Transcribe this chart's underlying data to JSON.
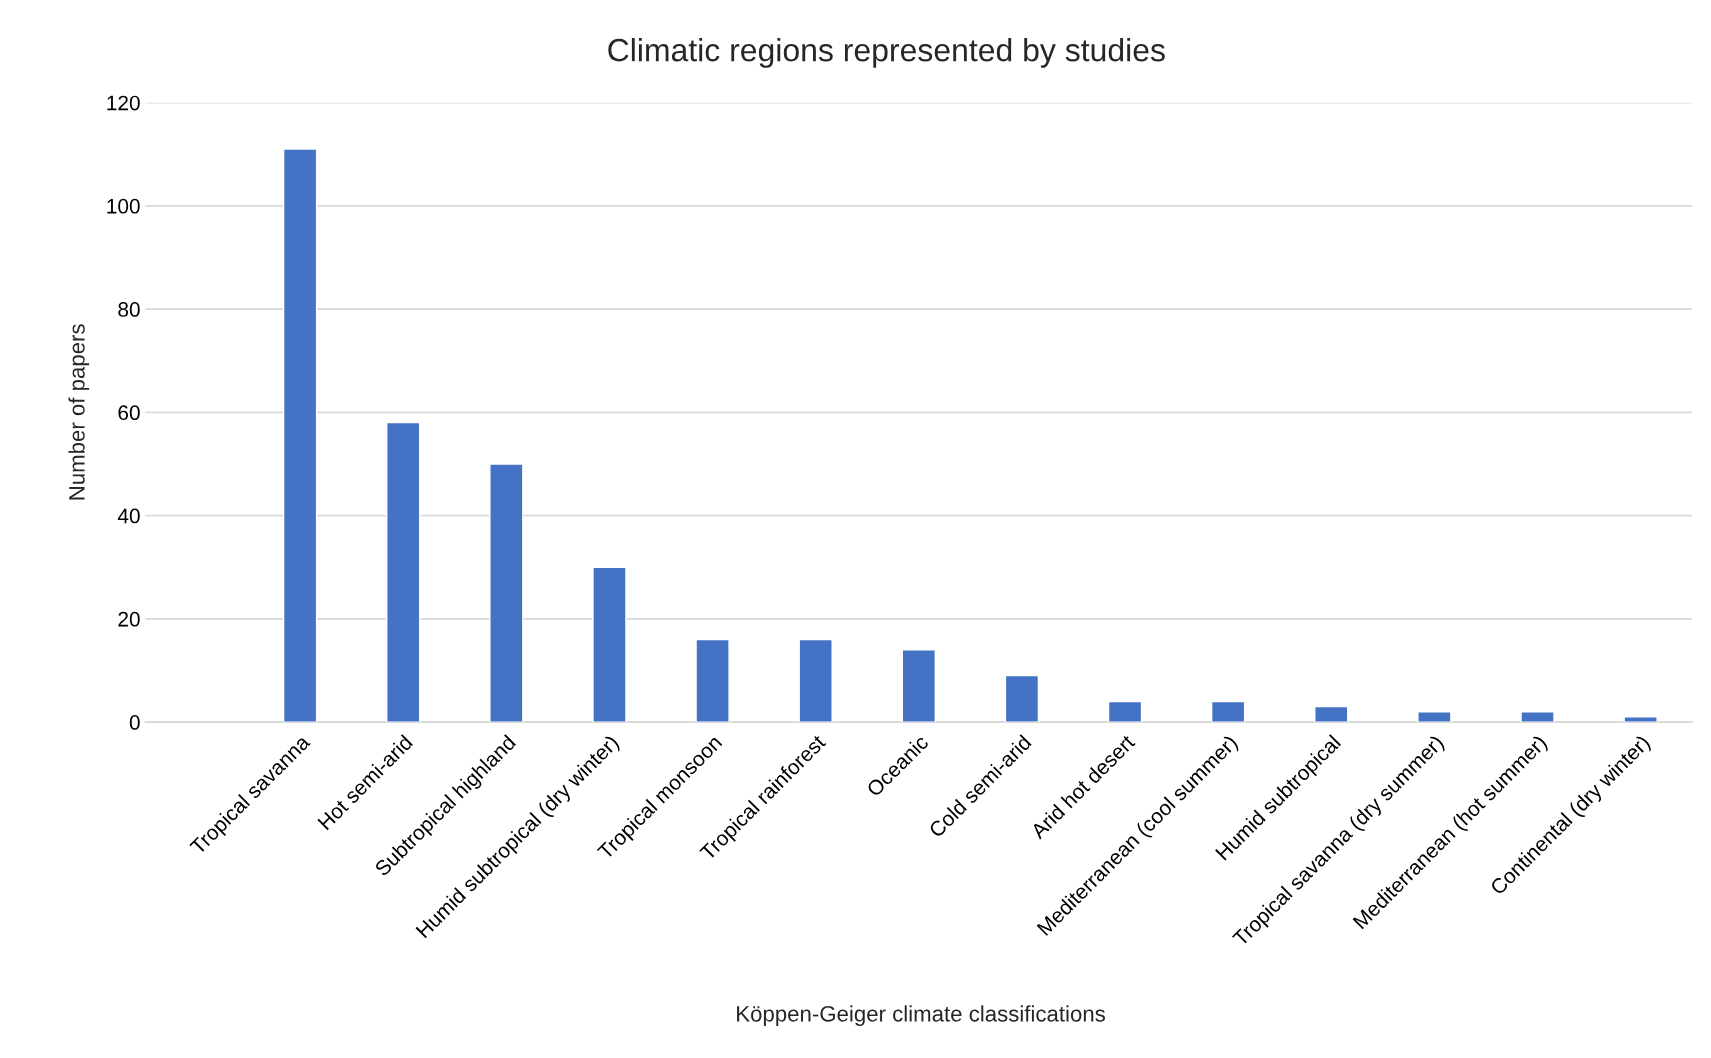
{
  "chart_data": {
    "type": "bar",
    "title": "Climatic regions represented by studies",
    "xlabel": "Köppen-Geiger climate classifications",
    "ylabel": "Number of papers",
    "categories": [
      null,
      "Tropical savanna",
      "Hot semi-arid",
      "Subtropical highland",
      "Humid subtropical (dry winter)",
      "Tropical monsoon",
      "Tropical rainforest",
      "Oceanic",
      "Cold semi-arid",
      "Arid hot desert",
      "Mediterranean (cool summer)",
      "Humid subtropical",
      "Tropical savanna (dry summer)",
      "Mediterranean (hot summer)",
      "Continental (dry winter)"
    ],
    "values": [
      null,
      111,
      58,
      50,
      30,
      16,
      16,
      14,
      9,
      4,
      4,
      3,
      2,
      2,
      1
    ],
    "color": "#4472c4",
    "ylim": [
      0,
      120
    ],
    "yticks": [
      0,
      20,
      40,
      60,
      80,
      100,
      120
    ],
    "grid": "y",
    "legend": false
  }
}
